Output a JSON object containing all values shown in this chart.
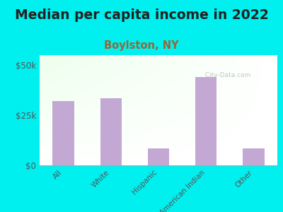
{
  "title": "Median per capita income in 2022",
  "subtitle": "Boylston, NY",
  "categories": [
    "All",
    "White",
    "Hispanic",
    "American Indian",
    "Other"
  ],
  "values": [
    32000,
    33500,
    8500,
    44000,
    8500
  ],
  "bar_color": "#c4a8d4",
  "ylim": [
    0,
    55000
  ],
  "ytick_values": [
    0,
    25000,
    50000
  ],
  "ytick_labels": [
    "$0",
    "$25k",
    "$50k"
  ],
  "background_outer": "#00EFEF",
  "background_inner_left": "#e8f5d8",
  "background_inner_right": "#ffffff",
  "title_fontsize": 13.5,
  "subtitle_fontsize": 10.5,
  "title_color": "#222222",
  "subtitle_color": "#996633",
  "tick_label_color": "#555555",
  "watermark": "  City-Data.com",
  "watermark_color": "#aaaaaa"
}
